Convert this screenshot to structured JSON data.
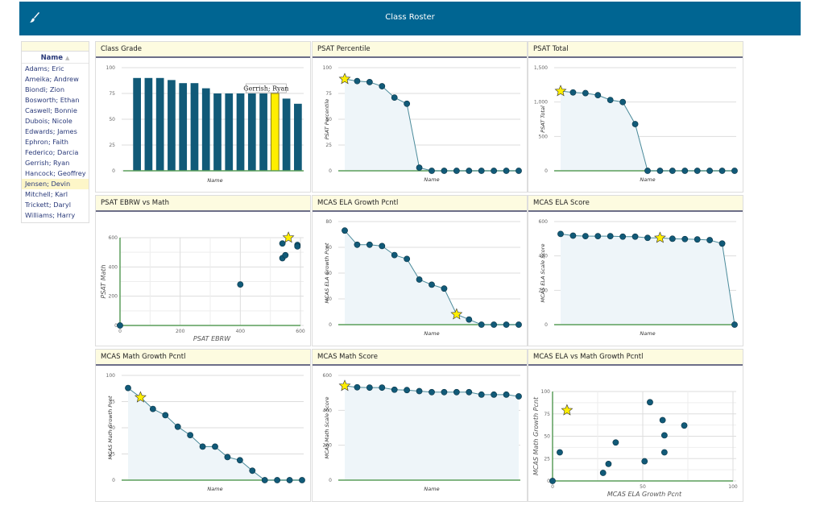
{
  "header": {
    "title": "Class Roster",
    "icon": "paintbrush-icon",
    "color": "#006592"
  },
  "roster": {
    "column_header": "Name",
    "sort_indicator": "▲",
    "students": [
      "Adams; Eric",
      "Ameika; Andrew",
      "Biondi; Zion",
      "Bosworth; Ethan",
      "Caswell; Bonnie",
      "Dubois; Nicole",
      "Edwards; James",
      "Ephron; Faith",
      "Federico; Darcia",
      "Gerrish; Ryan",
      "Hancock; Geoffrey",
      "Jensen; Devin",
      "Mitchell; Karl",
      "Trickett; Daryl",
      "Williams; Harry"
    ],
    "selected": "Jensen; Devin"
  },
  "colors": {
    "mark": "#115a78",
    "highlight": "#ffee00",
    "baseline": "#5a9e5a",
    "area": "#eef5f9"
  },
  "chart_data": [
    {
      "id": "class-grade",
      "type": "bar",
      "title": "Class Grade",
      "xlabel": "Name",
      "ylabel": "",
      "ylim": [
        0,
        100
      ],
      "yticks": [
        0,
        25,
        50,
        75,
        100
      ],
      "values": [
        90,
        90,
        90,
        88,
        85,
        85,
        80,
        75,
        75,
        75,
        75,
        75,
        75,
        70,
        65
      ],
      "highlight_index": 12,
      "tooltip": "Gerrish; Ryan"
    },
    {
      "id": "psat-percentile",
      "type": "area",
      "title": "PSAT Percentile",
      "xlabel": "Name",
      "ylabel": "PSAT Percentile",
      "ylim": [
        0,
        100
      ],
      "yticks": [
        0,
        25,
        50,
        75,
        100
      ],
      "values": [
        89,
        87,
        86,
        82,
        71,
        65,
        3,
        0,
        0,
        0,
        0,
        0,
        0,
        0,
        0
      ],
      "highlight_index": 0
    },
    {
      "id": "psat-total",
      "type": "area",
      "title": "PSAT Total",
      "xlabel": "Name",
      "ylabel": "PSAT Total",
      "ylim": [
        0,
        1500
      ],
      "yticks": [
        0,
        500,
        1000,
        1500
      ],
      "ytick_labels": [
        "0",
        "500",
        "1,000",
        "1,500"
      ],
      "values": [
        1160,
        1140,
        1130,
        1100,
        1030,
        1000,
        680,
        0,
        0,
        0,
        0,
        0,
        0,
        0,
        0
      ],
      "highlight_index": 0
    },
    {
      "id": "psat-ebrw-vs-math",
      "type": "scatter",
      "title": "PSAT EBRW vs Math",
      "xlabel": "PSAT EBRW",
      "ylabel": "PSAT Math",
      "xlim": [
        0,
        600
      ],
      "ylim": [
        0,
        600
      ],
      "xticks": [
        0,
        200,
        400,
        600
      ],
      "yticks": [
        0,
        200,
        400,
        600
      ],
      "points": [
        [
          0,
          0
        ],
        [
          400,
          280
        ],
        [
          540,
          460
        ],
        [
          550,
          480
        ],
        [
          540,
          560
        ],
        [
          560,
          600
        ],
        [
          590,
          550
        ],
        [
          590,
          540
        ]
      ],
      "highlight_index": 5
    },
    {
      "id": "mcas-ela-growth",
      "type": "area",
      "title": "MCAS ELA Growth Pcntl",
      "xlabel": "Name",
      "ylabel": "MCAS ELA Growth Pcnt",
      "ylim": [
        0,
        80
      ],
      "yticks": [
        0,
        20,
        40,
        60,
        80
      ],
      "values": [
        73,
        62,
        62,
        61,
        54,
        51,
        35,
        31,
        28,
        8,
        4,
        0,
        0,
        0,
        0
      ],
      "highlight_index": 9
    },
    {
      "id": "mcas-ela-score",
      "type": "area",
      "title": "MCAS ELA Score",
      "xlabel": "Name",
      "ylabel": "MCAS ELA Scale Score",
      "ylim": [
        0,
        600
      ],
      "yticks": [
        0,
        200,
        400,
        600
      ],
      "values": [
        528,
        518,
        515,
        515,
        515,
        512,
        512,
        505,
        505,
        500,
        498,
        496,
        492,
        472,
        0
      ],
      "highlight_index": 8
    },
    {
      "id": "mcas-math-growth",
      "type": "area",
      "title": "MCAS Math Growth Pcntl",
      "xlabel": "Name",
      "ylabel": "MCAS Math Growth Pcnt",
      "ylim": [
        0,
        100
      ],
      "yticks": [
        0,
        25,
        50,
        75,
        100
      ],
      "values": [
        88,
        79,
        68,
        62,
        51,
        43,
        32,
        32,
        22,
        19,
        9,
        0,
        0,
        0,
        0
      ],
      "highlight_index": 1
    },
    {
      "id": "mcas-math-score",
      "type": "area",
      "title": "MCAS Math Score",
      "xlabel": "Name",
      "ylabel": "MCAS Math Scale Score",
      "ylim": [
        0,
        600
      ],
      "yticks": [
        0,
        200,
        400,
        600
      ],
      "values": [
        540,
        532,
        530,
        530,
        518,
        516,
        510,
        504,
        504,
        504,
        504,
        490,
        490,
        490,
        480
      ],
      "highlight_index": 0
    },
    {
      "id": "mcas-ela-vs-math-growth",
      "type": "scatter",
      "title": "MCAS ELA vs Math Growth Pcntl",
      "xlabel": "MCAS ELA Growth Pcnt",
      "ylabel": "MCAS Math Growth Pcnt",
      "xlim": [
        0,
        100
      ],
      "ylim": [
        0,
        100
      ],
      "xticks": [
        0,
        50,
        100
      ],
      "yticks": [
        0,
        25,
        50,
        75,
        100
      ],
      "points": [
        [
          0,
          0
        ],
        [
          4,
          32
        ],
        [
          8,
          79
        ],
        [
          28,
          9
        ],
        [
          31,
          19
        ],
        [
          35,
          43
        ],
        [
          51,
          22
        ],
        [
          54,
          88
        ],
        [
          61,
          68
        ],
        [
          62,
          51
        ],
        [
          62,
          32
        ],
        [
          73,
          62
        ]
      ],
      "highlight_index": 2
    }
  ]
}
